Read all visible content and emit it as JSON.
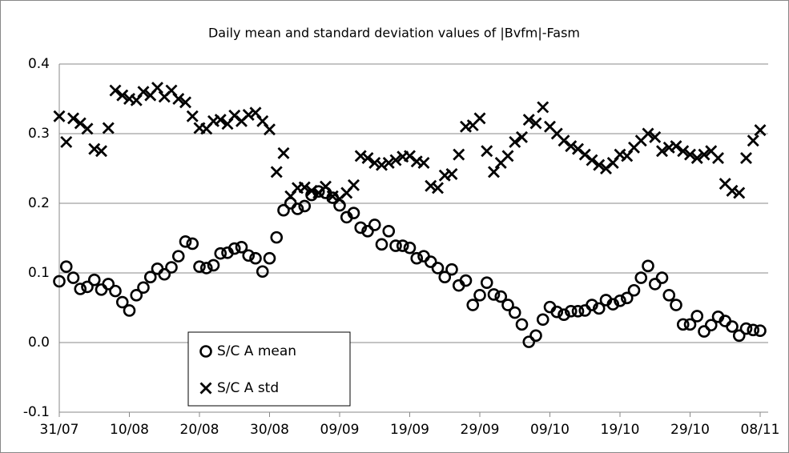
{
  "chart_data": {
    "type": "scatter",
    "title": "Daily mean and standard deviation values of |Bvfm|-Fasm",
    "categories": [
      "31/07",
      null,
      null,
      null,
      null,
      null,
      null,
      null,
      null,
      null,
      "10/08",
      null,
      null,
      null,
      null,
      null,
      null,
      null,
      null,
      null,
      "20/08",
      null,
      null,
      null,
      null,
      null,
      null,
      null,
      null,
      null,
      "30/08",
      null,
      null,
      null,
      null,
      null,
      null,
      null,
      null,
      null,
      "09/09",
      null,
      null,
      null,
      null,
      null,
      null,
      null,
      null,
      null,
      "19/09",
      null,
      null,
      null,
      null,
      null,
      null,
      null,
      null,
      null,
      "29/09",
      null,
      null,
      null,
      null,
      null,
      null,
      null,
      null,
      null,
      "09/10",
      null,
      null,
      null,
      null,
      null,
      null,
      null,
      null,
      null,
      "19/10",
      null,
      null,
      null,
      null,
      null,
      null,
      null,
      null,
      null,
      "29/10",
      null,
      null,
      null,
      null,
      null,
      null,
      null,
      null,
      null,
      "08/11"
    ],
    "series": [
      {
        "name": "S/C A mean",
        "marker": "circle",
        "color": "#000000",
        "values": [
          0.088,
          0.109,
          0.093,
          0.077,
          0.08,
          0.09,
          0.076,
          0.084,
          0.074,
          0.058,
          0.046,
          0.068,
          0.079,
          0.094,
          0.106,
          0.098,
          0.108,
          0.124,
          0.145,
          0.142,
          0.109,
          0.107,
          0.111,
          0.128,
          0.129,
          0.135,
          0.137,
          0.125,
          0.121,
          0.102,
          0.121,
          0.151,
          0.19,
          0.2,
          0.192,
          0.196,
          0.212,
          0.217,
          0.215,
          0.208,
          0.197,
          0.18,
          0.186,
          0.165,
          0.16,
          0.169,
          0.141,
          0.16,
          0.139,
          0.139,
          0.136,
          0.121,
          0.124,
          0.116,
          0.107,
          0.094,
          0.105,
          0.082,
          0.089,
          0.054,
          0.068,
          0.086,
          0.069,
          0.066,
          0.054,
          0.043,
          0.026,
          0.001,
          0.01,
          0.033,
          0.051,
          0.044,
          0.04,
          0.045,
          0.045,
          0.046,
          0.054,
          0.049,
          0.061,
          0.055,
          0.06,
          0.064,
          0.075,
          0.093,
          0.11,
          0.084,
          0.093,
          0.068,
          0.054,
          0.026,
          0.026,
          0.038,
          0.016,
          0.025,
          0.037,
          0.031,
          0.023,
          0.01,
          0.02,
          0.018,
          0.017
        ]
      },
      {
        "name": "S/C A std",
        "marker": "x",
        "color": "#000000",
        "values": [
          0.325,
          0.288,
          0.322,
          0.315,
          0.307,
          0.278,
          0.275,
          0.308,
          0.362,
          0.355,
          0.35,
          0.348,
          0.36,
          0.355,
          0.366,
          0.353,
          0.362,
          0.35,
          0.345,
          0.325,
          0.308,
          0.307,
          0.318,
          0.32,
          0.314,
          0.326,
          0.318,
          0.327,
          0.33,
          0.318,
          0.306,
          0.245,
          0.272,
          0.21,
          0.222,
          0.223,
          0.218,
          0.215,
          0.224,
          0.21,
          0.206,
          0.215,
          0.226,
          0.268,
          0.265,
          0.258,
          0.255,
          0.258,
          0.262,
          0.267,
          0.268,
          0.26,
          0.258,
          0.225,
          0.222,
          0.24,
          0.242,
          0.27,
          0.31,
          0.312,
          0.322,
          0.275,
          0.245,
          0.258,
          0.268,
          0.288,
          0.295,
          0.32,
          0.315,
          0.338,
          0.31,
          0.3,
          0.29,
          0.282,
          0.278,
          0.27,
          0.262,
          0.255,
          0.25,
          0.258,
          0.27,
          0.268,
          0.28,
          0.29,
          0.3,
          0.295,
          0.275,
          0.28,
          0.282,
          0.275,
          0.27,
          0.265,
          0.27,
          0.275,
          0.265,
          0.228,
          0.218,
          0.215,
          0.265,
          0.29,
          0.305
        ]
      }
    ],
    "ylim": [
      -0.1,
      0.4
    ],
    "yticks": [
      {
        "value": -0.1,
        "label": "-0.1"
      },
      {
        "value": 0,
        "label": "0.0"
      },
      {
        "value": 0.1,
        "label": "0.1"
      },
      {
        "value": 0.2,
        "label": "0.2"
      },
      {
        "value": 0.3,
        "label": "0.3"
      },
      {
        "value": 0.4,
        "label": "0.4"
      }
    ],
    "grid": true,
    "legend": "lower left"
  }
}
